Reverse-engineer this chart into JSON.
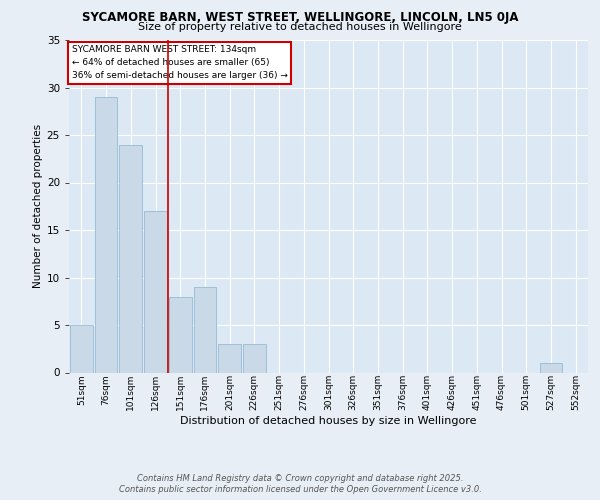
{
  "title1": "SYCAMORE BARN, WEST STREET, WELLINGORE, LINCOLN, LN5 0JA",
  "title2": "Size of property relative to detached houses in Wellingore",
  "xlabel": "Distribution of detached houses by size in Wellingore",
  "ylabel": "Number of detached properties",
  "categories": [
    "51sqm",
    "76sqm",
    "101sqm",
    "126sqm",
    "151sqm",
    "176sqm",
    "201sqm",
    "226sqm",
    "251sqm",
    "276sqm",
    "301sqm",
    "326sqm",
    "351sqm",
    "376sqm",
    "401sqm",
    "426sqm",
    "451sqm",
    "476sqm",
    "501sqm",
    "527sqm",
    "552sqm"
  ],
  "values": [
    5,
    29,
    24,
    17,
    8,
    9,
    3,
    3,
    0,
    0,
    0,
    0,
    0,
    0,
    0,
    0,
    0,
    0,
    0,
    1,
    0
  ],
  "bar_color": "#c9d9e8",
  "bar_edge_color": "#8ab4d0",
  "ylim": [
    0,
    35
  ],
  "yticks": [
    0,
    5,
    10,
    15,
    20,
    25,
    30,
    35
  ],
  "vline_index": 3.5,
  "annotation_box_text": "SYCAMORE BARN WEST STREET: 134sqm\n← 64% of detached houses are smaller (65)\n36% of semi-detached houses are larger (36) →",
  "footer1": "Contains HM Land Registry data © Crown copyright and database right 2025.",
  "footer2": "Contains public sector information licensed under the Open Government Licence v3.0.",
  "bg_color": "#e8eef5",
  "plot_bg_color": "#dce8f4",
  "grid_color": "#ffffff",
  "annotation_box_color": "#ffffff",
  "annotation_box_edge": "#cc0000",
  "vline_color": "#cc0000",
  "title1_fontsize": 8.5,
  "title2_fontsize": 8.0,
  "ylabel_fontsize": 7.5,
  "xlabel_fontsize": 8.0,
  "ytick_fontsize": 7.5,
  "xtick_fontsize": 6.5,
  "annotation_fontsize": 6.5,
  "footer_fontsize": 6.0
}
